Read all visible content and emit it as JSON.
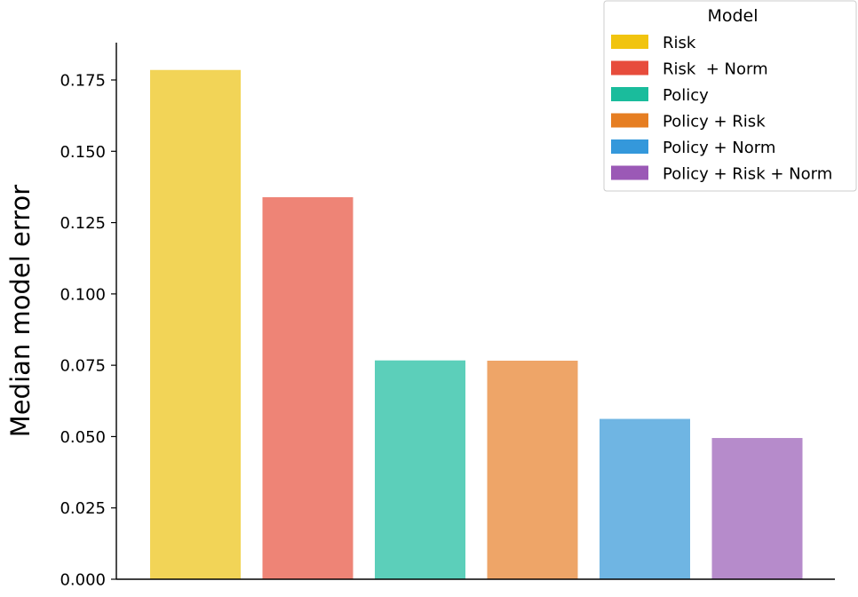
{
  "chart_data": {
    "type": "bar",
    "categories": [
      "Risk",
      "Risk  + Norm",
      "Policy",
      "Policy + Risk",
      "Policy + Norm",
      "Policy + Risk + Norm"
    ],
    "values": [
      0.1785,
      0.1339,
      0.0767,
      0.0766,
      0.0562,
      0.0495
    ],
    "bar_colors": [
      "#f2d457",
      "#ee8476",
      "#5ccfba",
      "#eea568",
      "#6fb5e3",
      "#b68bcb"
    ],
    "legend_colors": [
      "#f1c40f",
      "#e74c3c",
      "#1abc9c",
      "#e67e22",
      "#3498db",
      "#9b59b6"
    ],
    "title": "",
    "xlabel": "",
    "ylabel": "Median model error",
    "ylim": [
      0,
      0.19
    ],
    "yticks": [
      "0.000",
      "0.025",
      "0.050",
      "0.075",
      "0.100",
      "0.125",
      "0.150",
      "0.175"
    ],
    "grid": false,
    "legend": {
      "title": "Model",
      "placement": "top-right",
      "entries": [
        "Risk",
        "Risk  + Norm",
        "Policy",
        "Policy + Risk",
        "Policy + Norm",
        "Policy + Risk + Norm"
      ]
    }
  }
}
